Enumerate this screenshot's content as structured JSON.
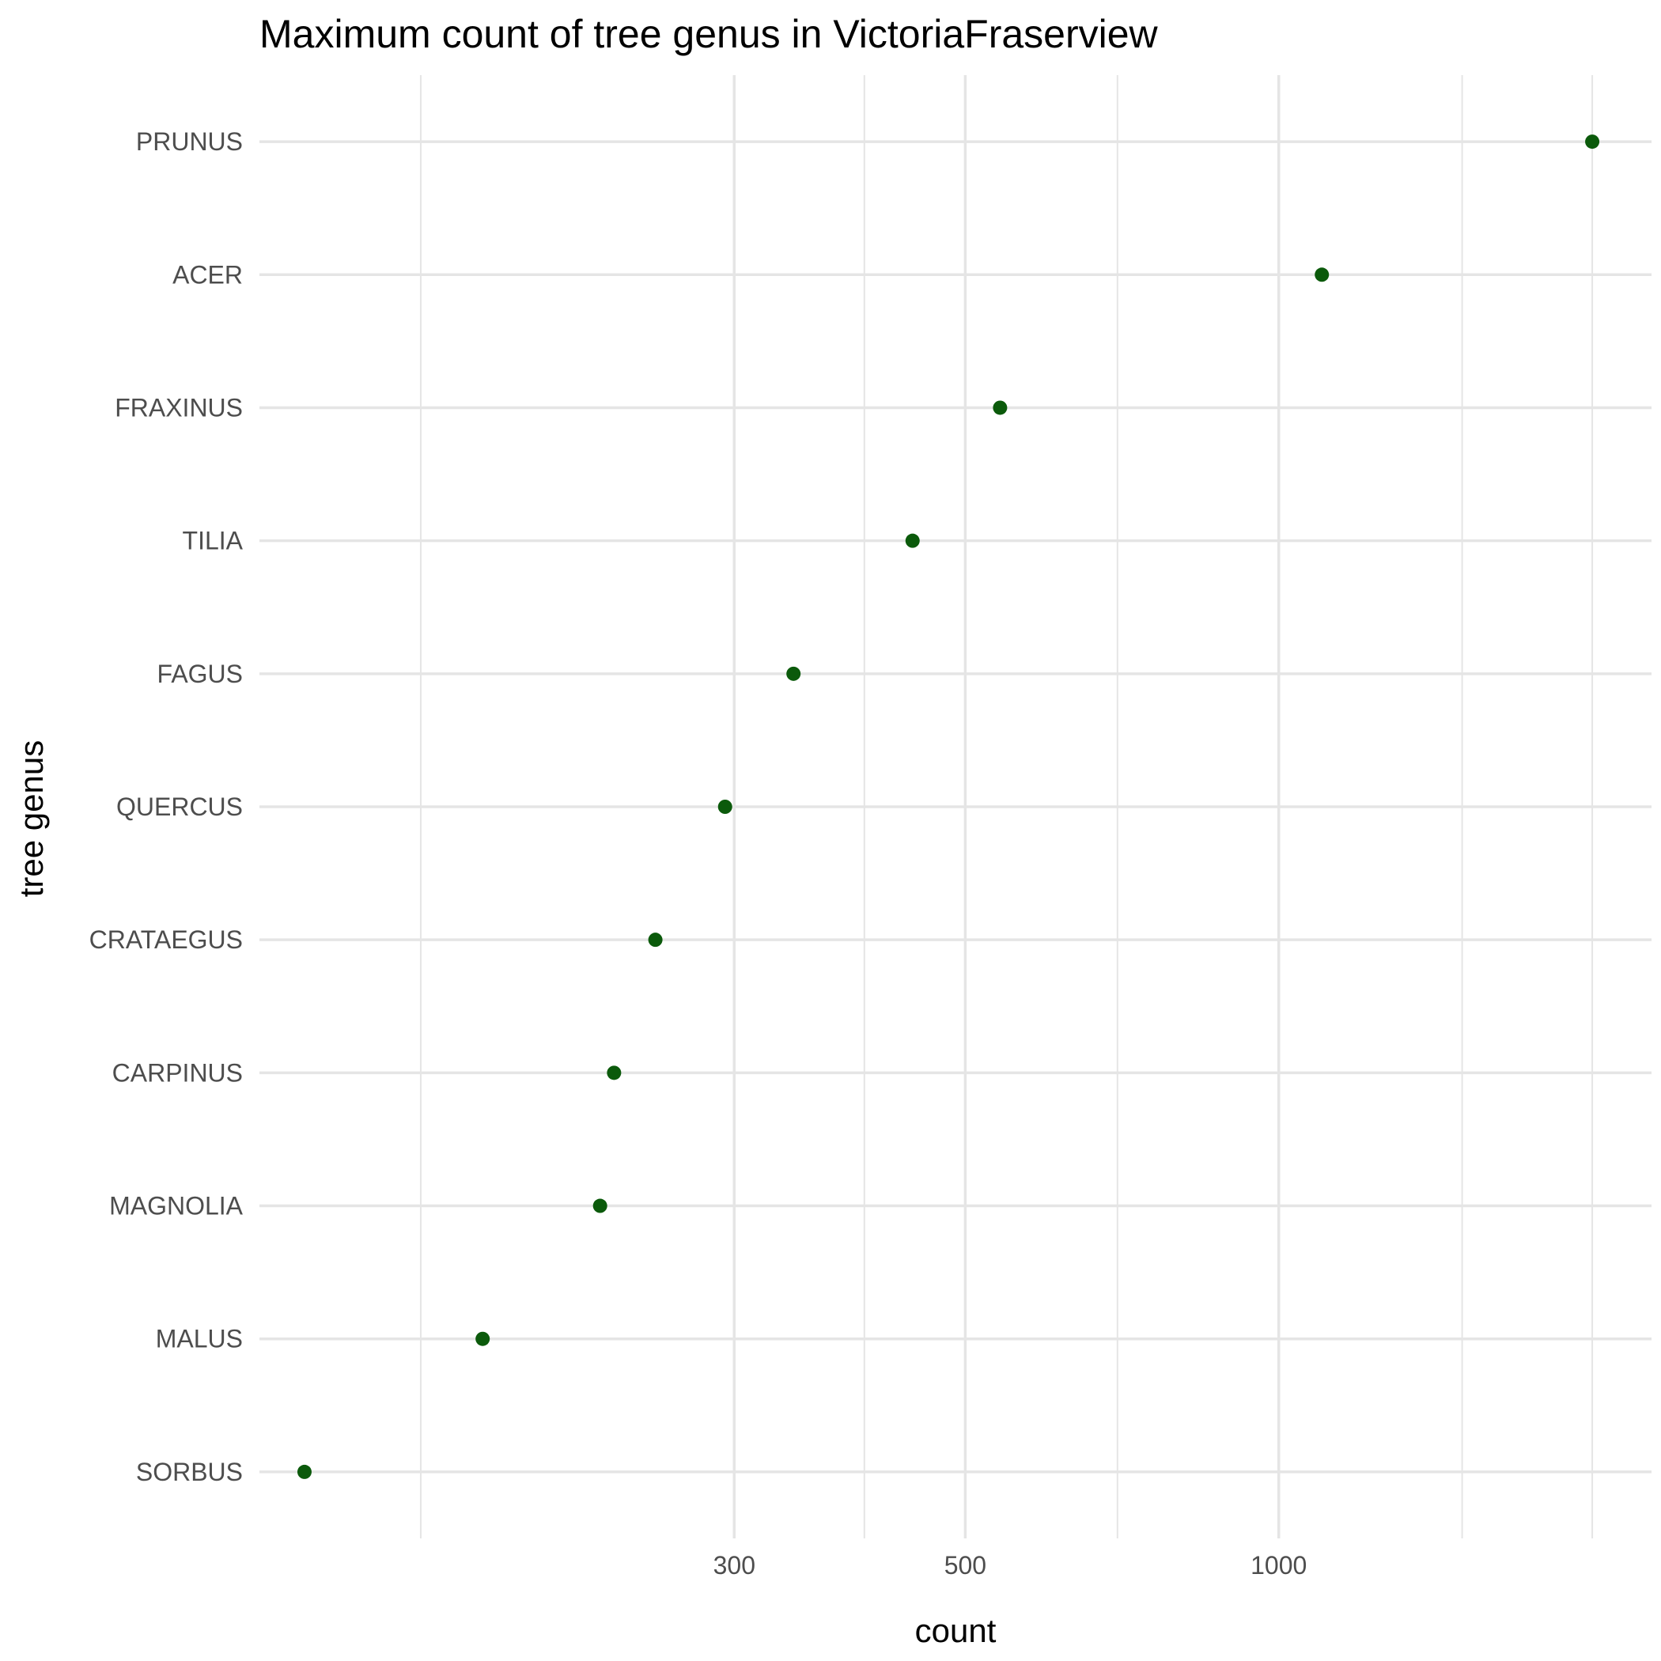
{
  "chart_data": {
    "type": "scatter",
    "title": "Maximum count of tree genus in VictoriaFraserview",
    "xlabel": "count",
    "ylabel": "tree genus",
    "x_scale": "log10",
    "xlim": [
      105,
      2280
    ],
    "x_major_ticks": [
      300,
      500,
      1000
    ],
    "x_major_tick_labels": [
      "300",
      "500",
      "1000"
    ],
    "x_minor_ticks": [
      150,
      400,
      700,
      1500,
      2000
    ],
    "grid": true,
    "categories": [
      "PRUNUS",
      "ACER",
      "FRAXINUS",
      "TILIA",
      "FAGUS",
      "QUERCUS",
      "CRATAEGUS",
      "CARPINUS",
      "MAGNOLIA",
      "MALUS",
      "SORBUS"
    ],
    "values": [
      2000,
      1100,
      540,
      445,
      342,
      294,
      252,
      230,
      223,
      172,
      116
    ],
    "colors": {
      "point": "#0b5a0b",
      "grid": "#e5e5e5",
      "background": "#ffffff"
    }
  }
}
